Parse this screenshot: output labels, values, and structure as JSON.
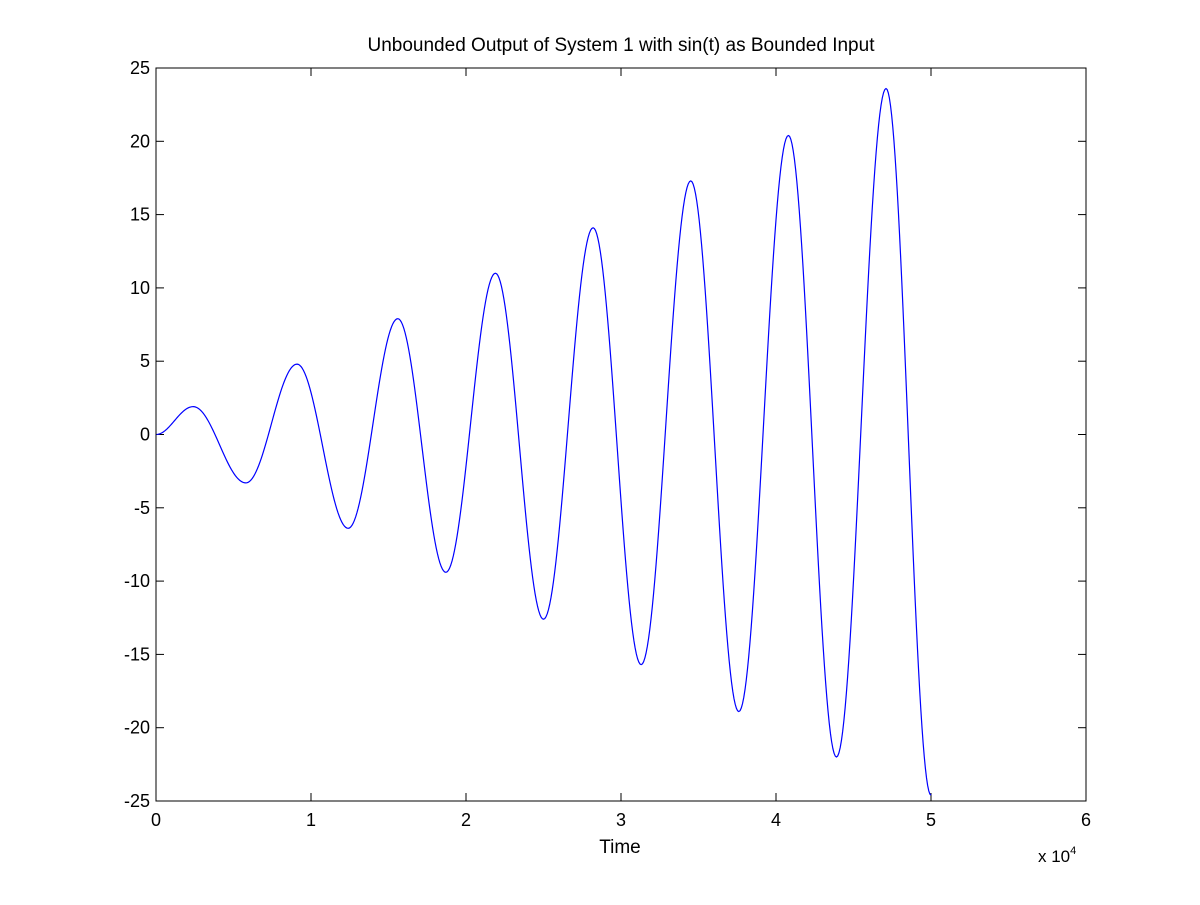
{
  "chart_data": {
    "type": "line",
    "title": "Unbounded Output of System 1 with sin(t) as Bounded Input",
    "xlabel": "Time",
    "ylabel": "",
    "xlim": [
      0,
      6
    ],
    "ylim": [
      -25,
      25
    ],
    "x_multiplier_text": "x 10",
    "x_multiplier_exponent": "4",
    "x_ticks": [
      0,
      1,
      2,
      3,
      4,
      5,
      6
    ],
    "x_tick_labels": [
      "0",
      "1",
      "2",
      "3",
      "4",
      "5",
      "6"
    ],
    "y_ticks": [
      -25,
      -20,
      -15,
      -10,
      -5,
      0,
      5,
      10,
      15,
      20,
      25
    ],
    "y_tick_labels": [
      "-25",
      "-20",
      "-15",
      "-10",
      "-5",
      "0",
      "5",
      "10",
      "15",
      "20",
      "25"
    ],
    "grid": false,
    "series": [
      {
        "color": "#0000ff",
        "x": [
          0,
          0.24,
          0.58,
          0.91,
          1.24,
          1.56,
          1.87,
          2.19,
          2.5,
          2.82,
          3.13,
          3.45,
          3.76,
          4.08,
          4.39,
          4.71,
          5.0
        ],
        "y": [
          0,
          1.9,
          -3.3,
          4.8,
          -6.4,
          7.9,
          -9.4,
          11.0,
          -12.6,
          14.1,
          -15.7,
          17.3,
          -18.9,
          20.4,
          -22.0,
          23.6,
          -24.6
        ]
      }
    ]
  }
}
